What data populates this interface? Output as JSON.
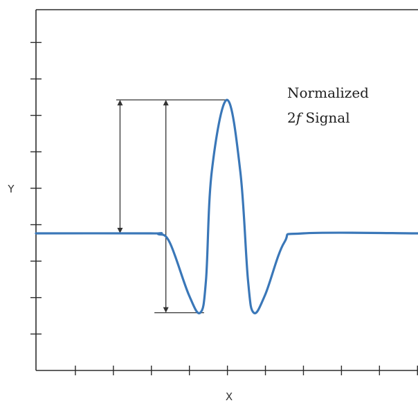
{
  "chart_data": {
    "type": "line",
    "title": "",
    "xlabel": "X",
    "ylabel": "Y",
    "xlim": [
      0,
      10
    ],
    "ylim": [
      0,
      10
    ],
    "x_tick_count": 10,
    "y_tick_count": 9,
    "grid": false,
    "annotation": {
      "line1": "Normalized",
      "prefix": "2",
      "italic": "f",
      "suffix": " Signal"
    },
    "colors": {
      "signal": "#3a77b8",
      "axes": "#2b2b2b"
    },
    "series": [
      {
        "x": [
          0,
          3.0,
          3.2,
          3.5,
          4.0,
          4.3,
          4.45,
          4.6,
          5.0,
          5.35,
          5.55,
          5.7,
          6.0,
          6.5,
          7.0,
          10
        ],
        "values": [
          3.8,
          3.8,
          3.78,
          3.55,
          2.1,
          1.6,
          2.5,
          5.5,
          7.5,
          5.5,
          2.5,
          1.6,
          2.1,
          3.55,
          3.8,
          3.8
        ]
      }
    ],
    "dimensions": [
      {
        "x": 2.2,
        "y_from": 3.8,
        "y_to": 7.5
      },
      {
        "x": 3.4,
        "y_from": 1.6,
        "y_to": 7.5
      }
    ],
    "reference_lines": [
      {
        "y": 7.5,
        "x_from": 2.1,
        "x_to": 5.0
      },
      {
        "y": 1.6,
        "x_from": 3.1,
        "x_to": 4.4
      }
    ]
  }
}
